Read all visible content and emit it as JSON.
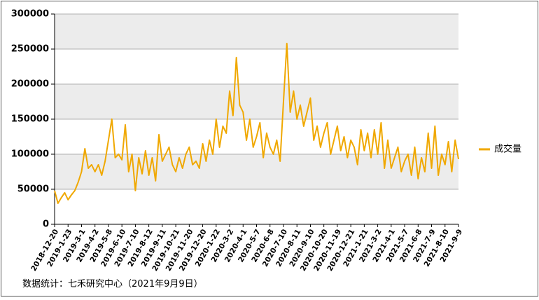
{
  "chart_data": {
    "type": "line",
    "note": "数据统计：七禾研究中心（2021年9月9日）",
    "categories": [
      "2018-12-20",
      null,
      null,
      null,
      "2019-1-23",
      null,
      null,
      null,
      "2019-3-1",
      null,
      null,
      null,
      "2019-4-2",
      null,
      null,
      null,
      "2019-5-8",
      null,
      null,
      null,
      "2019-6-10",
      null,
      null,
      null,
      "2019-7-10",
      null,
      null,
      null,
      "2019-8-12",
      null,
      null,
      null,
      "2019-9-11",
      null,
      null,
      null,
      "2019-10-21",
      null,
      null,
      null,
      "2019-11-20",
      null,
      null,
      null,
      "2019-12-20",
      null,
      null,
      null,
      "2020-1-22",
      null,
      null,
      null,
      "2020-3-2",
      null,
      null,
      null,
      "2020-4-1",
      null,
      null,
      null,
      "2020-5-7",
      null,
      null,
      null,
      "2020-6-8",
      null,
      null,
      null,
      "2020-7-10",
      null,
      null,
      null,
      "2020-8-11",
      null,
      null,
      null,
      "2020-9-10",
      null,
      null,
      null,
      "2020-10-20",
      null,
      null,
      null,
      "2020-11-19",
      null,
      null,
      null,
      "2020-12-21",
      null,
      null,
      null,
      "2021-1-21",
      null,
      null,
      null,
      "2021-3-2",
      null,
      null,
      null,
      "2021-4-1",
      null,
      null,
      null,
      "2021-5-7",
      null,
      null,
      null,
      "2021-6-8",
      null,
      null,
      null,
      "2021-7-9",
      null,
      null,
      null,
      "2021-8-10",
      null,
      null,
      null,
      "2021-9-9"
    ],
    "series": [
      {
        "name": "成交量",
        "color": "#f0a800",
        "values": [
          48000,
          30000,
          38000,
          45000,
          35000,
          42000,
          48000,
          60000,
          75000,
          108000,
          80000,
          85000,
          75000,
          85000,
          70000,
          90000,
          120000,
          150000,
          95000,
          100000,
          92000,
          142000,
          75000,
          100000,
          48000,
          95000,
          72000,
          105000,
          70000,
          95000,
          62000,
          128000,
          90000,
          100000,
          110000,
          85000,
          75000,
          95000,
          80000,
          100000,
          110000,
          85000,
          90000,
          80000,
          115000,
          90000,
          120000,
          100000,
          150000,
          110000,
          140000,
          130000,
          190000,
          155000,
          238000,
          170000,
          160000,
          120000,
          150000,
          110000,
          125000,
          145000,
          95000,
          130000,
          110000,
          100000,
          120000,
          90000,
          175000,
          258000,
          160000,
          190000,
          150000,
          170000,
          140000,
          160000,
          180000,
          120000,
          140000,
          110000,
          130000,
          145000,
          100000,
          120000,
          140000,
          105000,
          125000,
          95000,
          120000,
          110000,
          85000,
          135000,
          105000,
          130000,
          95000,
          135000,
          100000,
          145000,
          80000,
          120000,
          80000,
          95000,
          110000,
          75000,
          90000,
          100000,
          70000,
          110000,
          65000,
          95000,
          75000,
          130000,
          80000,
          140000,
          70000,
          100000,
          85000,
          118000,
          75000,
          120000,
          93000
        ]
      }
    ],
    "ylim": [
      0,
      300000
    ],
    "yticks": [
      0,
      50000,
      100000,
      150000,
      200000,
      250000,
      300000
    ],
    "grid": true,
    "legend": "right"
  }
}
